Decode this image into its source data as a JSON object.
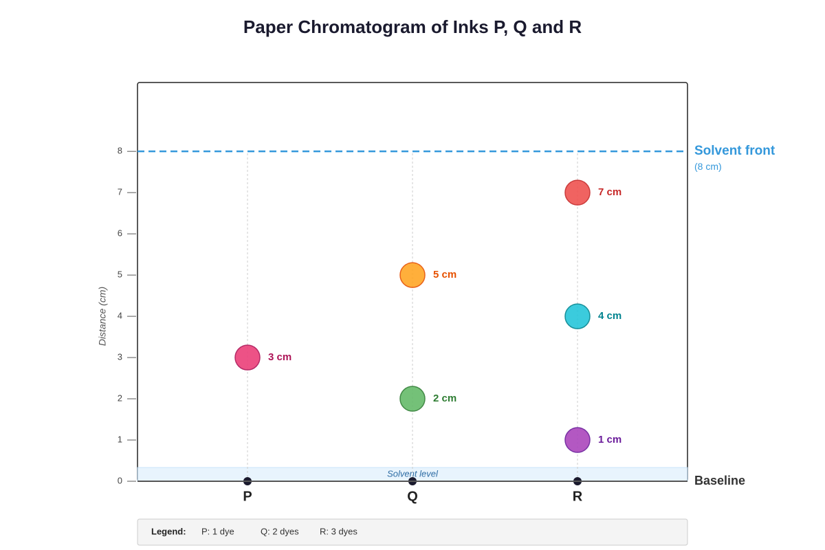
{
  "chart_data": {
    "type": "spot",
    "title": "Paper Chromatogram of Inks P, Q and R",
    "y_label": "Distance (cm)",
    "categories": [
      "P",
      "Q",
      "R"
    ],
    "ylim": [
      0,
      9.67
    ],
    "yticks": [
      0,
      1,
      2,
      3,
      4,
      5,
      6,
      7,
      8
    ],
    "points": [
      {
        "category": "P",
        "value": 3,
        "value_label": "3 cm",
        "color": "#ec407a",
        "label_color": "#ad1457"
      },
      {
        "category": "Q",
        "value": 2,
        "value_label": "2 cm",
        "color": "#66bb6a",
        "label_color": "#2e7d32"
      },
      {
        "category": "Q",
        "value": 5,
        "value_label": "5 cm",
        "color": "#ffa726",
        "label_color": "#e65100"
      },
      {
        "category": "R",
        "value": 1,
        "value_label": "1 cm",
        "color": "#ab47bc",
        "label_color": "#6a1b9a"
      },
      {
        "category": "R",
        "value": 4,
        "value_label": "4 cm",
        "color": "#26c6da",
        "label_color": "#00838f"
      },
      {
        "category": "R",
        "value": 7,
        "value_label": "7 cm",
        "color": "#ef5350",
        "label_color": "#c62828"
      }
    ],
    "solvent_front": {
      "value": 8,
      "label": "Solvent front",
      "note": "(8 cm)",
      "color": "#3498db"
    },
    "solvent_level": "Solvent level",
    "baseline": "Baseline",
    "legend": {
      "title": "Legend:",
      "items": [
        "P: 1 dye",
        "Q: 2 dyes",
        "R: 3 dyes"
      ]
    }
  }
}
